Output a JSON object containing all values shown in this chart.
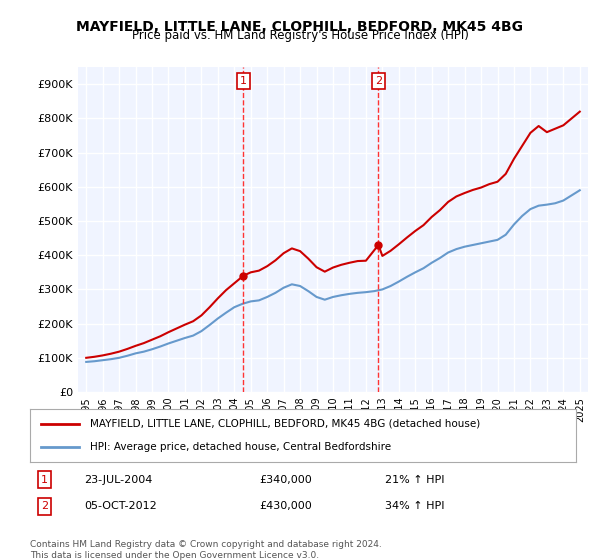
{
  "title": "MAYFIELD, LITTLE LANE, CLOPHILL, BEDFORD, MK45 4BG",
  "subtitle": "Price paid vs. HM Land Registry's House Price Index (HPI)",
  "ylabel": "",
  "ylim": [
    0,
    950000
  ],
  "yticks": [
    0,
    100000,
    200000,
    300000,
    400000,
    500000,
    600000,
    700000,
    800000,
    900000
  ],
  "ytick_labels": [
    "£0",
    "£100K",
    "£200K",
    "£300K",
    "£400K",
    "£500K",
    "£600K",
    "£700K",
    "£800K",
    "£900K"
  ],
  "bg_color": "#f0f4ff",
  "plot_bg": "#f0f4ff",
  "grid_color": "#ffffff",
  "sale1_year": 2004.55,
  "sale1_price": 340000,
  "sale1_label": "1",
  "sale2_year": 2012.76,
  "sale2_price": 430000,
  "sale2_label": "2",
  "legend_entry1": "MAYFIELD, LITTLE LANE, CLOPHILL, BEDFORD, MK45 4BG (detached house)",
  "legend_entry2": "HPI: Average price, detached house, Central Bedfordshire",
  "table_row1": "1    23-JUL-2004         £340,000        21% ↑ HPI",
  "table_row2": "2    05-OCT-2012         £430,000        34% ↑ HPI",
  "footnote": "Contains HM Land Registry data © Crown copyright and database right 2024.\nThis data is licensed under the Open Government Licence v3.0.",
  "red_color": "#cc0000",
  "blue_color": "#6699cc",
  "dashed_red": "#ff4444"
}
